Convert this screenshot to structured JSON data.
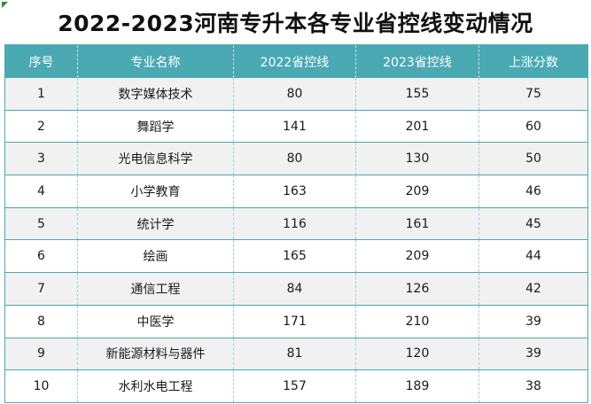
{
  "title": "2022-2023河南专升本各专业省控线变动情况",
  "colors": {
    "header_bg": "#4aa9b2",
    "header_text": "#ffffff",
    "row_alt_bg": "#f1f1f1",
    "corner_mark": "#2e8b3a"
  },
  "table": {
    "headers": [
      "序号",
      "专业名称",
      "2022省控线",
      "2023省控线",
      "上涨分数"
    ],
    "rows": [
      [
        "1",
        "数字媒体技术",
        "80",
        "155",
        "75"
      ],
      [
        "2",
        "舞蹈学",
        "141",
        "201",
        "60"
      ],
      [
        "3",
        "光电信息科学",
        "80",
        "130",
        "50"
      ],
      [
        "4",
        "小学教育",
        "163",
        "209",
        "46"
      ],
      [
        "5",
        "统计学",
        "116",
        "161",
        "45"
      ],
      [
        "6",
        "绘画",
        "165",
        "209",
        "44"
      ],
      [
        "7",
        "通信工程",
        "84",
        "126",
        "42"
      ],
      [
        "8",
        "中医学",
        "171",
        "210",
        "39"
      ],
      [
        "9",
        "新能源材料与器件",
        "81",
        "120",
        "39"
      ],
      [
        "10",
        "水利水电工程",
        "157",
        "189",
        "38"
      ]
    ]
  }
}
